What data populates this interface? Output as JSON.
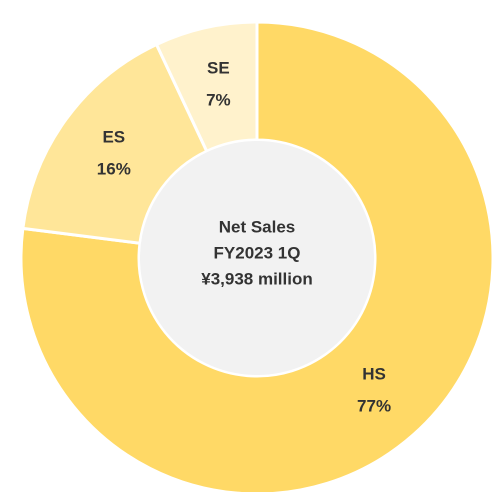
{
  "chart_data": {
    "type": "donut",
    "categories": [
      "HS",
      "ES",
      "SE"
    ],
    "values": [
      77,
      16,
      7
    ],
    "value_labels": [
      "77%",
      "16%",
      "7%"
    ],
    "colors": [
      "#FFD966",
      "#FFE699",
      "#FFF2CC"
    ],
    "center_text": [
      "Net Sales",
      "FY2023 1Q",
      "¥3,938 million"
    ]
  }
}
